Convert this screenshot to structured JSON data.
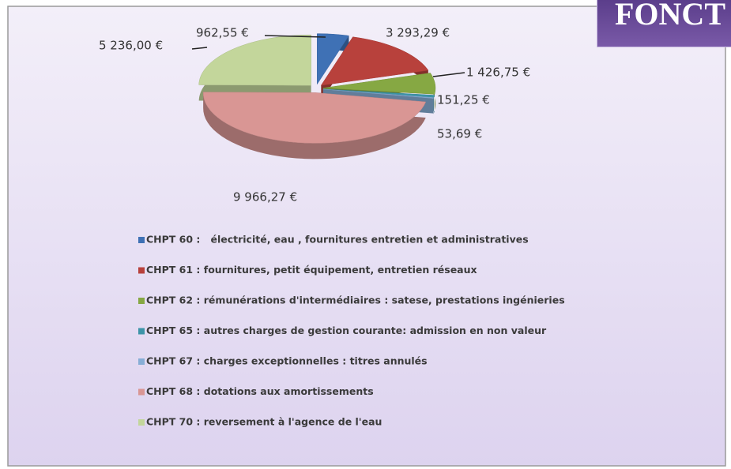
{
  "banner": "FONCT",
  "chart_data": {
    "type": "pie",
    "categories": [
      "CHPT 60 :   électricité, eau , fournitures entretien et administratives",
      "CHPT 61 : fournitures, petit équipement, entretien réseaux",
      "CHPT 62 : rémunérations d'intermédiaires : satese, prestations ingénieries",
      "CHPT 65 : autres charges de gestion courante: admission en non valeur",
      "CHPT 67 : charges exceptionnelles : titres annulés",
      "CHPT 68 : dotations aux amortissements",
      "CHPT 70 : reversement à l'agence de l'eau"
    ],
    "values": [
      962.55,
      3293.29,
      1426.75,
      151.25,
      53.69,
      9966.27,
      5236.0
    ],
    "value_labels": [
      "962,55 €",
      "3 293,29 €",
      "1 426,75 €",
      "151,25 €",
      "53,69 €",
      "9 966,27 €",
      "5 236,00 €"
    ],
    "colors": [
      "#3f71b5",
      "#b8413c",
      "#86a843",
      "#3d94a8",
      "#87aed6",
      "#d99694",
      "#c3d69b"
    ]
  }
}
